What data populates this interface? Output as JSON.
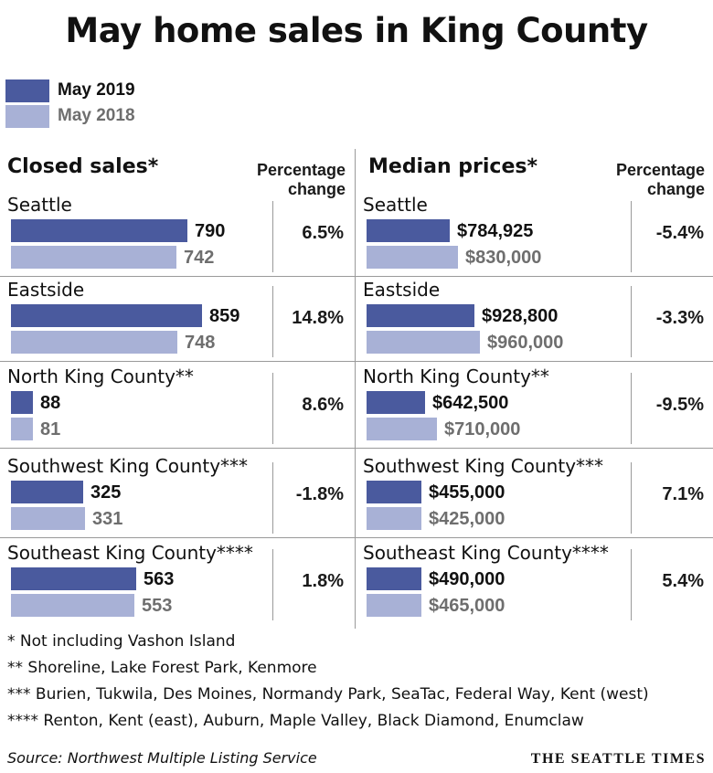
{
  "title": "May home sales in King County",
  "legend": [
    {
      "label": "May 2019",
      "color": "#4a5a9e"
    },
    {
      "label": "May 2018",
      "color": "#a8b1d6"
    }
  ],
  "colors": {
    "current": "#4a5a9e",
    "previous": "#a8b1d6"
  },
  "chart_data": [
    {
      "type": "bar",
      "title": "Closed sales*",
      "pct_header": [
        "Percentage",
        "change"
      ],
      "categories": [
        "Seattle",
        "Eastside",
        "North King County**",
        "Southwest King County***",
        "Southeast King County****"
      ],
      "series": [
        {
          "name": "May 2019",
          "values": [
            790,
            859,
            88,
            325,
            563
          ],
          "labels": [
            "790",
            "859",
            "88",
            "325",
            "563"
          ]
        },
        {
          "name": "May 2018",
          "values": [
            742,
            748,
            81,
            331,
            553
          ],
          "labels": [
            "742",
            "748",
            "81",
            "331",
            "553"
          ]
        }
      ],
      "percent_change": [
        "6.5%",
        "14.8%",
        "8.6%",
        "-1.8%",
        "1.8%"
      ]
    },
    {
      "type": "bar",
      "title": "Median prices*",
      "pct_header": [
        "Percentage",
        "change"
      ],
      "categories": [
        "Seattle",
        "Eastside",
        "North King County**",
        "Southwest King County***",
        "Southeast King County****"
      ],
      "series": [
        {
          "name": "May 2019",
          "values": [
            784925,
            928800,
            642500,
            455000,
            490000
          ],
          "labels": [
            "$784,925",
            "$928,800",
            "$642,500",
            "$455,000",
            "$490,000"
          ]
        },
        {
          "name": "May 2018",
          "values": [
            830000,
            960000,
            710000,
            425000,
            465000
          ],
          "labels": [
            "$830,000",
            "$960,000",
            "$710,000",
            "$425,000",
            "$465,000"
          ]
        }
      ],
      "percent_change": [
        "-5.4%",
        "-3.3%",
        "-9.5%",
        "7.1%",
        "5.4%"
      ]
    }
  ],
  "footnotes": [
    "* Not including Vashon Island",
    "** Shoreline, Lake Forest Park, Kenmore",
    "*** Burien, Tukwila, Des Moines, Normandy Park, SeaTac, Federal Way, Kent (west)",
    "**** Renton, Kent (east), Auburn, Maple Valley, Black Diamond, Enumclaw"
  ],
  "source": "Source: Northwest Multiple Listing Service",
  "brand": "THE SEATTLE TIMES"
}
